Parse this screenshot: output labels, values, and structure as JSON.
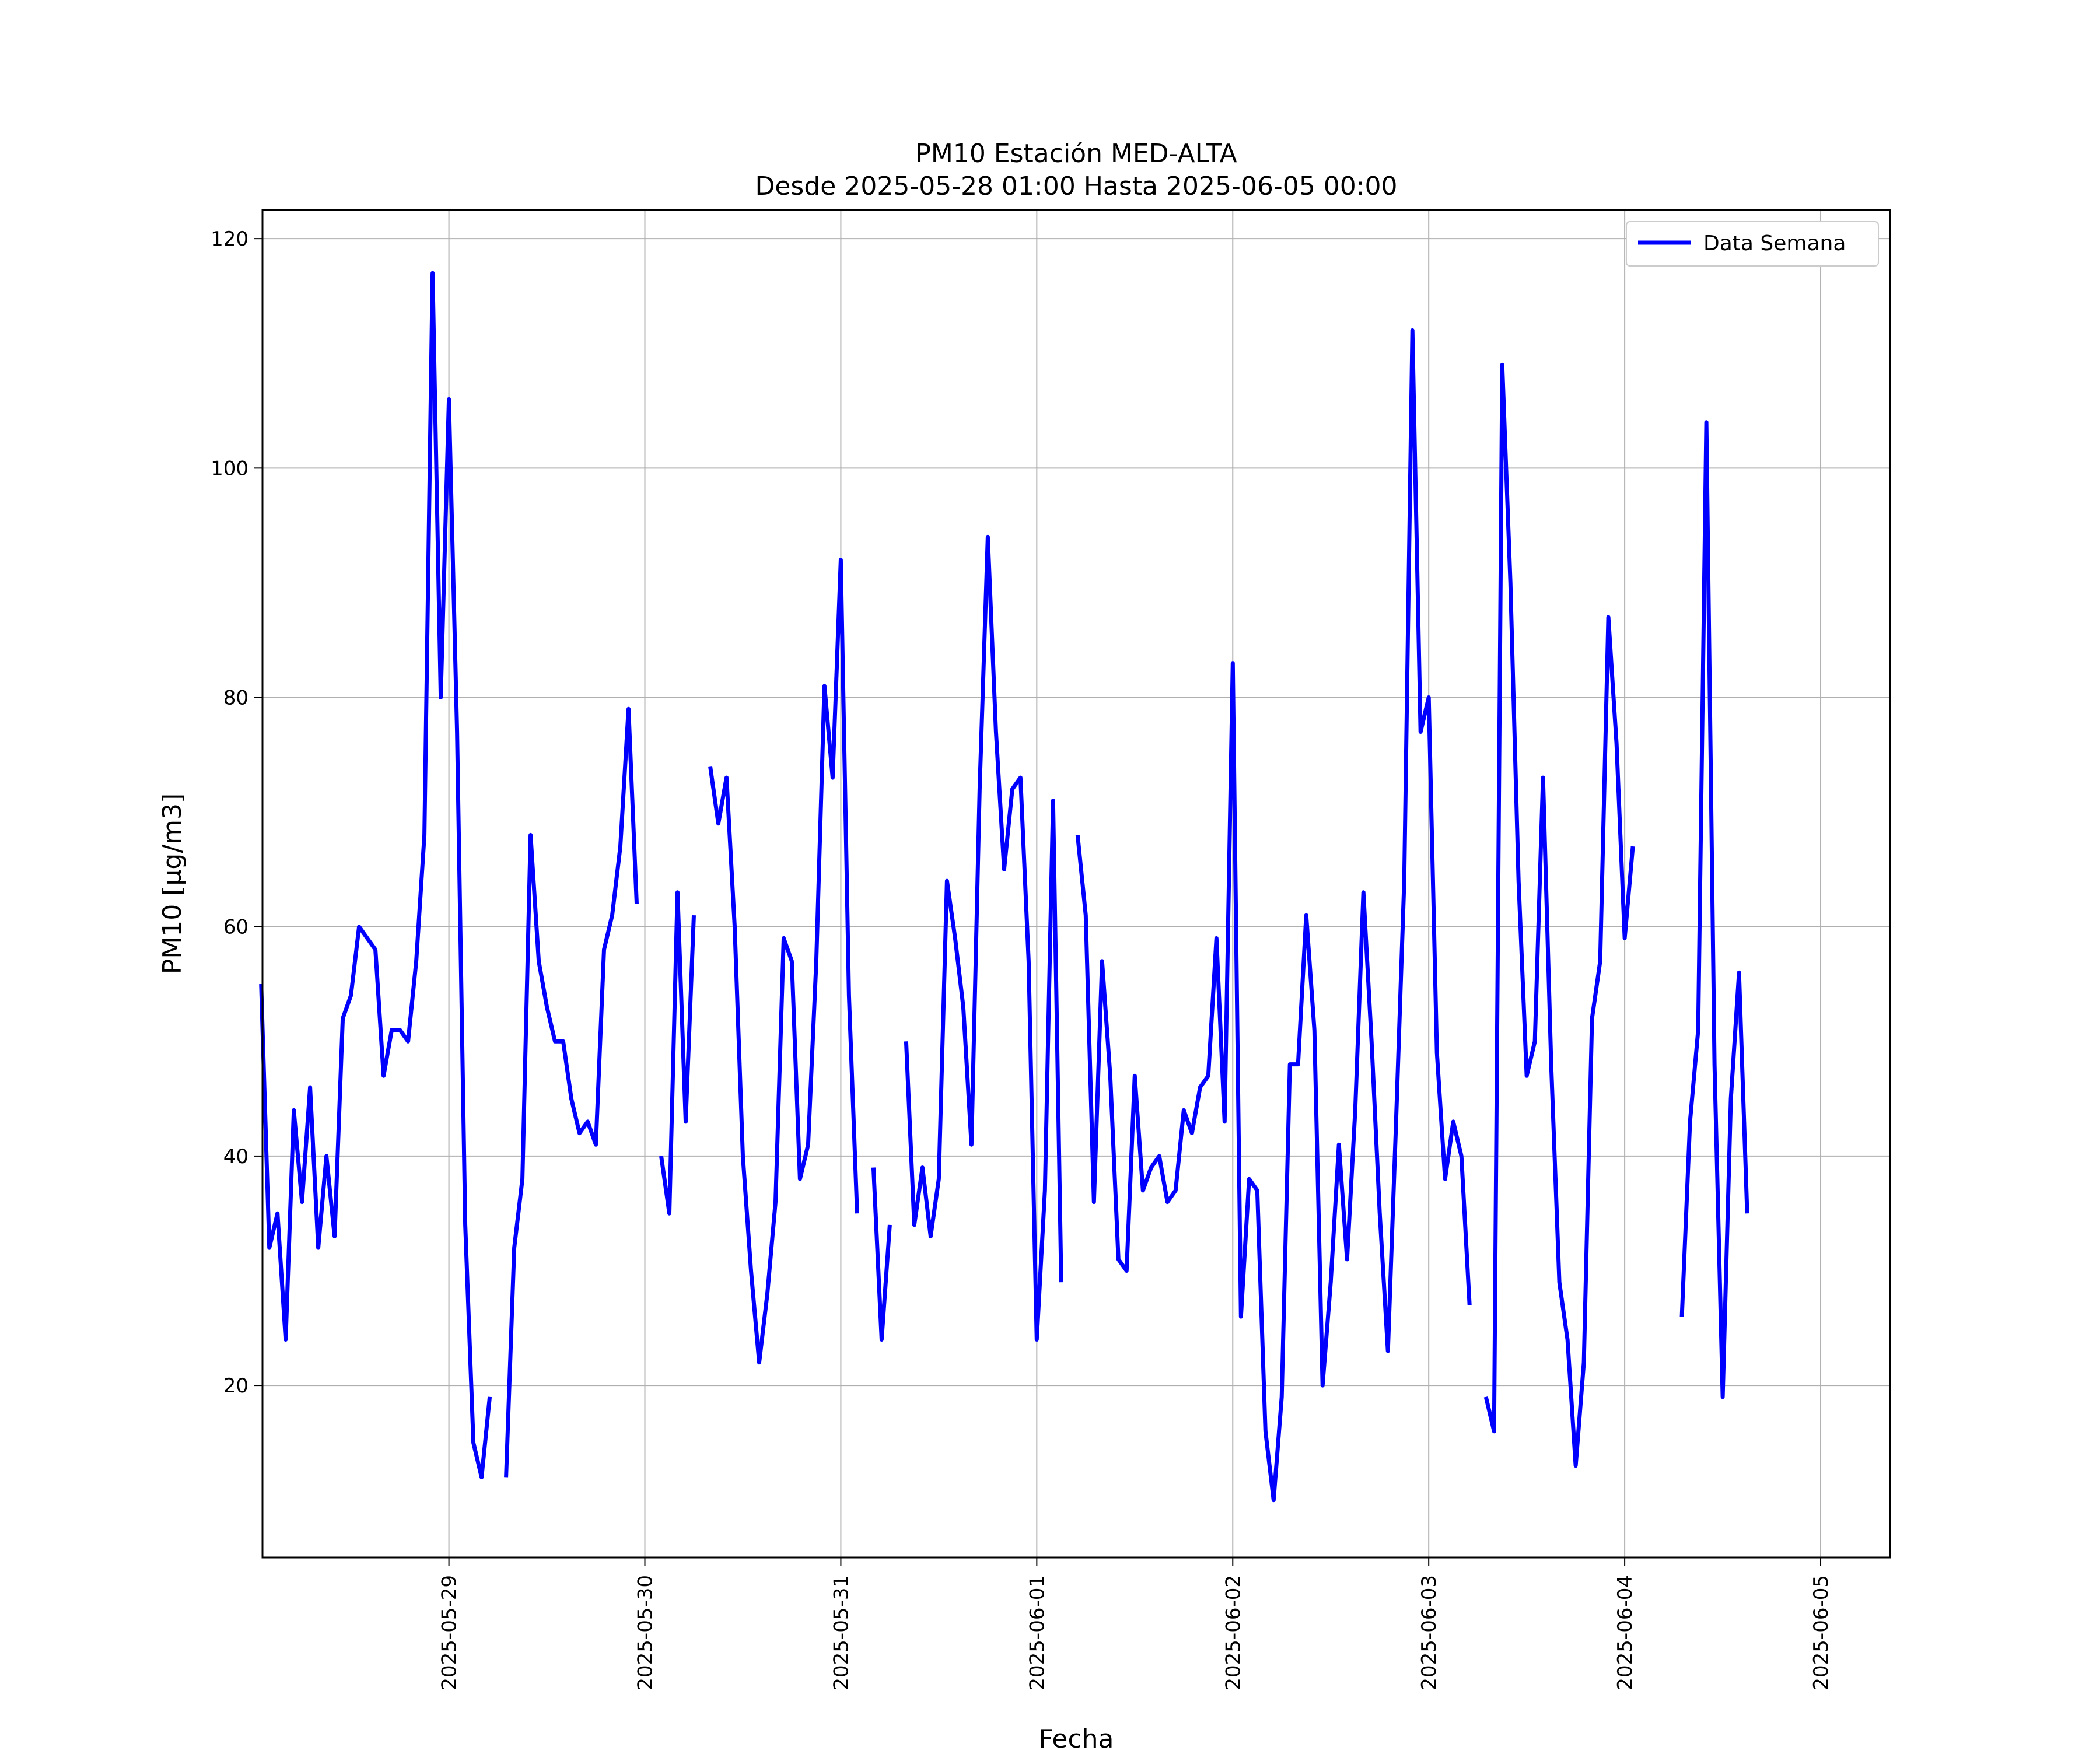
{
  "chart_data": {
    "type": "line",
    "title": "PM10 Estación MED-ALTA",
    "subtitle": "Desde 2025-05-28 01:00 Hasta 2025-06-05 00:00",
    "xlabel": "Fecha",
    "ylabel": "PM10 [μg/m3]",
    "xlim": [
      "2025-05-28 01:10",
      "2025-06-05 08:30"
    ],
    "ylim": [
      5,
      122.5
    ],
    "x_tick_labels": [
      "2025-05-29",
      "2025-05-30",
      "2025-05-31",
      "2025-06-01",
      "2025-06-02",
      "2025-06-03",
      "2025-06-04",
      "2025-06-05"
    ],
    "y_tick_labels": [
      "20",
      "40",
      "60",
      "80",
      "100",
      "120"
    ],
    "y_ticks": [
      20,
      40,
      60,
      80,
      100,
      120
    ],
    "grid": true,
    "legend_position": "top-right",
    "start": "2025-05-28 01:00",
    "interval_hours": 1,
    "series": [
      {
        "name": "Data Semana",
        "color": "#0000ff",
        "values": [
          55,
          32,
          35,
          24,
          44,
          36,
          46,
          32,
          40,
          33,
          52,
          54,
          60,
          59,
          58,
          47,
          51,
          51,
          50,
          57,
          68,
          117,
          80,
          106,
          77,
          34,
          15,
          12,
          19,
          null,
          12,
          32,
          38,
          68,
          57,
          53,
          50,
          50,
          45,
          42,
          43,
          41,
          58,
          61,
          67,
          79,
          62,
          null,
          null,
          40,
          35,
          63,
          43,
          61,
          null,
          74,
          69,
          73,
          60,
          40,
          30,
          22,
          28,
          36,
          59,
          57,
          38,
          41,
          57,
          81,
          73,
          92,
          54,
          35,
          null,
          39,
          24,
          34,
          null,
          50,
          34,
          39,
          33,
          38,
          64,
          59,
          53,
          41,
          72,
          94,
          77,
          65,
          72,
          73,
          57,
          24,
          37,
          71,
          29,
          null,
          68,
          61,
          36,
          57,
          47,
          31,
          30,
          47,
          37,
          39,
          40,
          36,
          37,
          44,
          42,
          46,
          47,
          59,
          43,
          83,
          26,
          38,
          37,
          16,
          10,
          19,
          48,
          48,
          61,
          51,
          20,
          29,
          41,
          31,
          44,
          63,
          50,
          35,
          23,
          43,
          64,
          112,
          77,
          80,
          49,
          38,
          43,
          40,
          27,
          null,
          19,
          16,
          109,
          90,
          64,
          47,
          50,
          73,
          48,
          29,
          24,
          13,
          22,
          52,
          57,
          87,
          76,
          59,
          67,
          null,
          null,
          null,
          null,
          null,
          26,
          43,
          51,
          104,
          48,
          19,
          45,
          56,
          35
        ]
      }
    ]
  }
}
